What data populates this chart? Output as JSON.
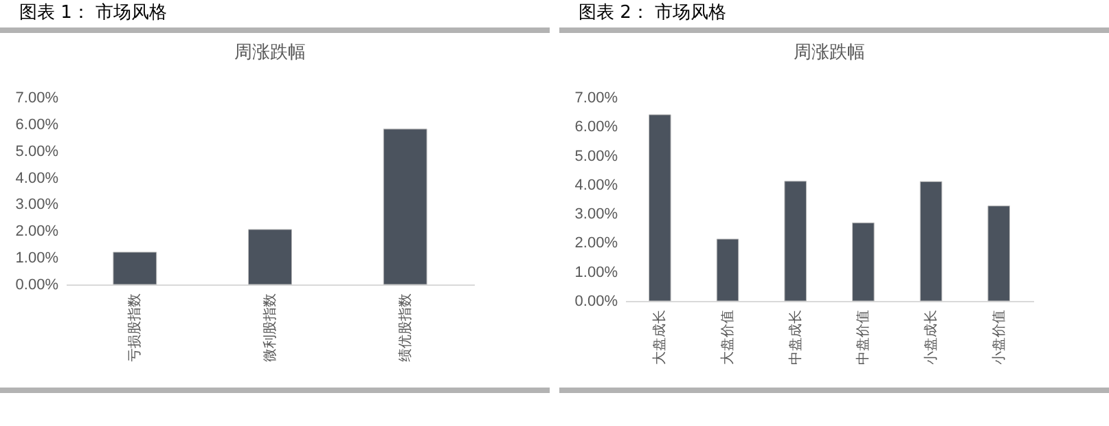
{
  "chart_data": [
    {
      "type": "bar",
      "title": "图表 1： 市场风格",
      "subtitle": "周涨跌幅",
      "categories": [
        "亏损股指数",
        "微利股指数",
        "绩优股指数"
      ],
      "values": [
        1.21,
        2.06,
        5.82
      ],
      "color": "#4b535e",
      "ylim": [
        0,
        7
      ],
      "yticks": [
        {
          "value": 0,
          "label": "0.00%"
        },
        {
          "value": 1,
          "label": "1.00%"
        },
        {
          "value": 2,
          "label": "2.00%"
        },
        {
          "value": 3,
          "label": "3.00%"
        },
        {
          "value": 4,
          "label": "4.00%"
        },
        {
          "value": 5,
          "label": "5.00%"
        },
        {
          "value": 6,
          "label": "6.00%"
        },
        {
          "value": 7,
          "label": "7.00%"
        }
      ],
      "grid": false
    },
    {
      "type": "bar",
      "title": "图表 2： 市场风格",
      "subtitle": "周涨跌幅",
      "categories": [
        "大盘成长",
        "大盘价值",
        "中盘成长",
        "中盘价值",
        "小盘成长",
        "小盘价值"
      ],
      "values": [
        6.41,
        2.13,
        4.12,
        2.69,
        4.11,
        3.27
      ],
      "color": "#4b535e",
      "ylim": [
        0,
        7
      ],
      "yticks": [
        {
          "value": 0,
          "label": "0.00%"
        },
        {
          "value": 1,
          "label": "1.00%"
        },
        {
          "value": 2,
          "label": "2.00%"
        },
        {
          "value": 3,
          "label": "3.00%"
        },
        {
          "value": 4,
          "label": "4.00%"
        },
        {
          "value": 5,
          "label": "5.00%"
        },
        {
          "value": 6,
          "label": "6.00%"
        },
        {
          "value": 7,
          "label": "7.00%"
        }
      ],
      "grid": false
    }
  ]
}
